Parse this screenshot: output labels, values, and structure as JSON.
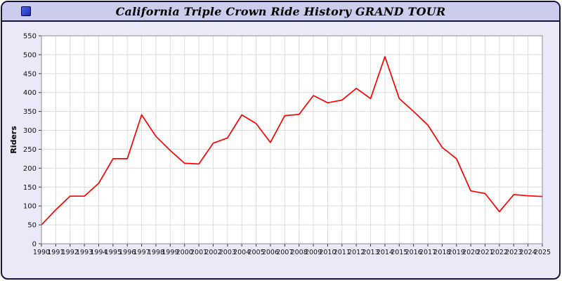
{
  "window": {
    "title": "California Triple Crown Ride History GRAND TOUR",
    "icon": "blue-app-icon"
  },
  "colors": {
    "page_bg": "#e9e9f8",
    "titlebar_bg": "#ccccec",
    "frame_border": "#14143c",
    "plot_bg": "#ffffff",
    "plot_border": "#8c8c8c",
    "grid": "#dcdcdc",
    "line": "#ff0000",
    "tick_text": "#111111"
  },
  "chart_data": {
    "type": "line",
    "title": "California Triple Crown Ride History GRAND TOUR",
    "xlabel": "",
    "ylabel": "Riders",
    "ylim": [
      0,
      550
    ],
    "ytick_step": 50,
    "grid": true,
    "legend": "none",
    "line_color": "#ff0000",
    "x": [
      1990,
      1991,
      1992,
      1993,
      1994,
      1995,
      1996,
      1997,
      1998,
      1999,
      2000,
      2001,
      2002,
      2003,
      2004,
      2005,
      2006,
      2007,
      2008,
      2009,
      2010,
      2011,
      2012,
      2013,
      2014,
      2015,
      2016,
      2017,
      2018,
      2019,
      2020,
      2021,
      2022,
      2023,
      2024,
      2025
    ],
    "values": [
      50,
      90,
      126,
      126,
      160,
      225,
      225,
      341,
      284,
      247,
      213,
      211,
      266,
      280,
      341,
      318,
      268,
      339,
      342,
      392,
      373,
      380,
      411,
      384,
      495,
      384,
      350,
      314,
      255,
      225,
      140,
      133,
      85,
      130,
      127,
      125
    ]
  }
}
